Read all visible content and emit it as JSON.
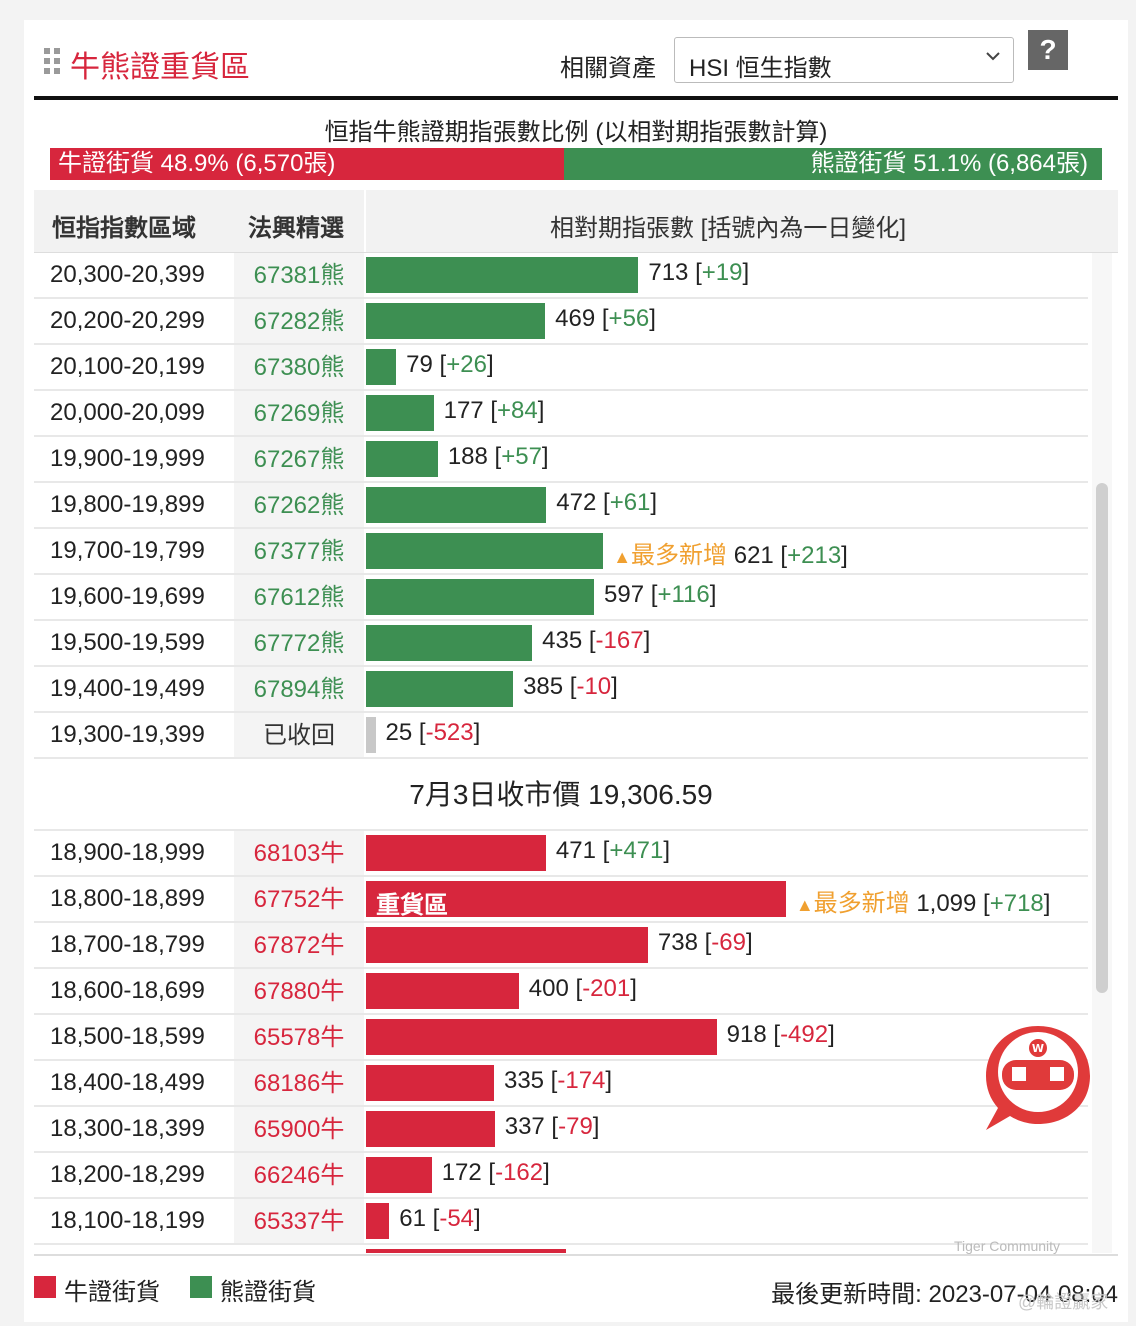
{
  "header": {
    "title": "牛熊證重貨區",
    "asset_label": "相關資產",
    "asset_value": "HSI 恒生指數",
    "help_label": "?"
  },
  "ratio": {
    "title": "恒指牛熊證期指張數比例 (以相對期指張數計算)",
    "bull_label": "牛證街貨 48.9% (6,570張)",
    "bear_label": "熊證街貨 51.1% (6,864張)",
    "bull_pct": 48.9,
    "bear_pct": 51.1,
    "bull_color": "#d7263d",
    "bear_color": "#3d8f52"
  },
  "table": {
    "headers": {
      "range": "恒指指數區域",
      "pick": "法興精選",
      "contracts": "相對期指張數 [括號內為一日變化]"
    },
    "bear_rows": [
      {
        "range": "20,300-20,399",
        "code": "67381熊",
        "value": 713,
        "value_text": "713",
        "change": "+19",
        "tag": ""
      },
      {
        "range": "20,200-20,299",
        "code": "67282熊",
        "value": 469,
        "value_text": "469",
        "change": "+56",
        "tag": ""
      },
      {
        "range": "20,100-20,199",
        "code": "67380熊",
        "value": 79,
        "value_text": "79",
        "change": "+26",
        "tag": ""
      },
      {
        "range": "20,000-20,099",
        "code": "67269熊",
        "value": 177,
        "value_text": "177",
        "change": "+84",
        "tag": ""
      },
      {
        "range": "19,900-19,999",
        "code": "67267熊",
        "value": 188,
        "value_text": "188",
        "change": "+57",
        "tag": ""
      },
      {
        "range": "19,800-19,899",
        "code": "67262熊",
        "value": 472,
        "value_text": "472",
        "change": "+61",
        "tag": ""
      },
      {
        "range": "19,700-19,799",
        "code": "67377熊",
        "value": 621,
        "value_text": "621",
        "change": "+213",
        "tag": "最多新增"
      },
      {
        "range": "19,600-19,699",
        "code": "67612熊",
        "value": 597,
        "value_text": "597",
        "change": "+116",
        "tag": ""
      },
      {
        "range": "19,500-19,599",
        "code": "67772熊",
        "value": 435,
        "value_text": "435",
        "change": "-167",
        "tag": ""
      },
      {
        "range": "19,400-19,499",
        "code": "67894熊",
        "value": 385,
        "value_text": "385",
        "change": "-10",
        "tag": ""
      },
      {
        "range": "19,300-19,399",
        "code": "已收回",
        "value": 25,
        "value_text": "25",
        "change": "-523",
        "tag": "",
        "recalled": true
      }
    ],
    "close_label": "7月3日收市價 19,306.59",
    "bull_rows": [
      {
        "range": "18,900-18,999",
        "code": "68103牛",
        "value": 471,
        "value_text": "471",
        "change": "+471",
        "tag": "",
        "inner": ""
      },
      {
        "range": "18,800-18,899",
        "code": "67752牛",
        "value": 1099,
        "value_text": "1,099",
        "change": "+718",
        "tag": "最多新增",
        "inner": "重貨區"
      },
      {
        "range": "18,700-18,799",
        "code": "67872牛",
        "value": 738,
        "value_text": "738",
        "change": "-69",
        "tag": "",
        "inner": ""
      },
      {
        "range": "18,600-18,699",
        "code": "67880牛",
        "value": 400,
        "value_text": "400",
        "change": "-201",
        "tag": "",
        "inner": ""
      },
      {
        "range": "18,500-18,599",
        "code": "65578牛",
        "value": 918,
        "value_text": "918",
        "change": "-492",
        "tag": "",
        "inner": ""
      },
      {
        "range": "18,400-18,499",
        "code": "68186牛",
        "value": 335,
        "value_text": "335",
        "change": "-174",
        "tag": "",
        "inner": ""
      },
      {
        "range": "18,300-18,399",
        "code": "65900牛",
        "value": 337,
        "value_text": "337",
        "change": "-79",
        "tag": "",
        "inner": ""
      },
      {
        "range": "18,200-18,299",
        "code": "66246牛",
        "value": 172,
        "value_text": "172",
        "change": "-162",
        "tag": "",
        "inner": ""
      },
      {
        "range": "18,100-18,199",
        "code": "65337牛",
        "value": 61,
        "value_text": "61",
        "change": "-54",
        "tag": "",
        "inner": ""
      }
    ]
  },
  "legend": {
    "bull": "牛證街貨",
    "bear": "熊證街貨"
  },
  "updated": "最後更新時間: 2023-07-04 08:04",
  "watermark": {
    "community": "Tiger Community",
    "handle": "@輪證贏家"
  }
}
